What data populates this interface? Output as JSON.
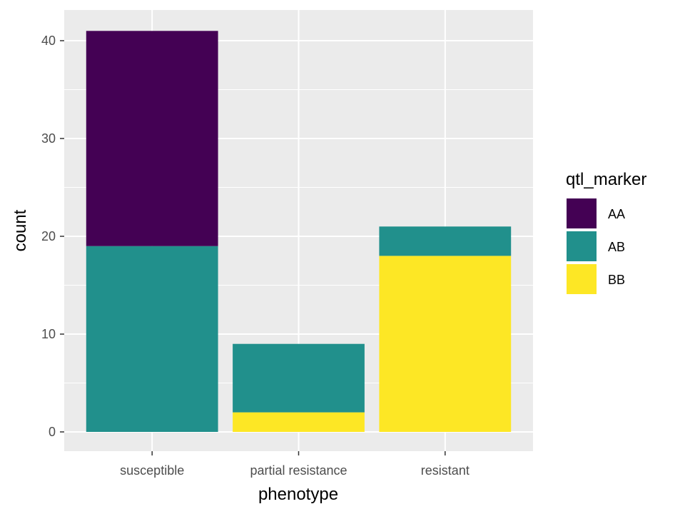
{
  "chart_data": {
    "type": "bar",
    "stacked": true,
    "categories": [
      "susceptible",
      "partial resistance",
      "resistant"
    ],
    "series": [
      {
        "name": "AA",
        "values": [
          22,
          0,
          0
        ],
        "color": "#440154"
      },
      {
        "name": "AB",
        "values": [
          19,
          7,
          3
        ],
        "color": "#21908C"
      },
      {
        "name": "BB",
        "values": [
          0,
          2,
          18
        ],
        "color": "#FDE725"
      }
    ],
    "xlabel": "phenotype",
    "ylabel": "count",
    "ylim": [
      0,
      43
    ],
    "yticks": [
      0,
      10,
      20,
      30,
      40
    ],
    "grid": true,
    "panel_background": "#EBEBEB",
    "legend": {
      "title": "qtl_marker",
      "placement": "right"
    }
  }
}
